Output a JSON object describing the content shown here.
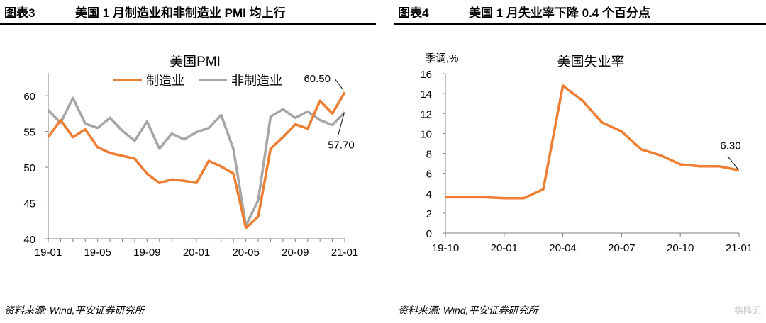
{
  "left_panel": {
    "fig_label": "图表3",
    "heading": "美国 1 月制造业和非制造业 PMI 均上行",
    "source": "资料来源: Wind,平安证券研究所"
  },
  "right_panel": {
    "fig_label": "图表4",
    "heading": "美国 1 月失业率下降 0.4 个百分点",
    "source": "资料来源: Wind,平安证券研究所"
  },
  "watermark": "格隆汇",
  "chart_data": [
    {
      "type": "line",
      "title": "美国PMI",
      "ylim": [
        40,
        62
      ],
      "yticks": [
        40,
        45,
        50,
        55,
        60
      ],
      "xtick_labels": [
        "19-01",
        "19-05",
        "19-09",
        "20-01",
        "20-05",
        "20-09",
        "21-01"
      ],
      "xtick_index": [
        0,
        4,
        8,
        12,
        16,
        20,
        24
      ],
      "legend_position": "top-center",
      "grid": false,
      "x": [
        "19-01",
        "19-02",
        "19-03",
        "19-04",
        "19-05",
        "19-06",
        "19-07",
        "19-08",
        "19-09",
        "19-10",
        "19-11",
        "19-12",
        "20-01",
        "20-02",
        "20-03",
        "20-04",
        "20-05",
        "20-06",
        "20-07",
        "20-08",
        "20-09",
        "20-10",
        "20-11",
        "20-12",
        "21-01"
      ],
      "series": [
        {
          "name": "制造业",
          "color": "#ED7D31",
          "values": [
            54.2,
            56.6,
            54.2,
            55.3,
            52.8,
            52.0,
            51.6,
            51.2,
            49.1,
            47.8,
            48.3,
            48.1,
            47.8,
            50.9,
            50.1,
            49.1,
            41.5,
            43.1,
            52.6,
            54.2,
            56.0,
            55.4,
            59.3,
            57.5,
            60.5
          ]
        },
        {
          "name": "非制造业",
          "color": "#A6A6A6",
          "values": [
            58.0,
            56.2,
            59.7,
            56.1,
            55.5,
            56.9,
            55.1,
            53.7,
            56.4,
            52.6,
            54.7,
            53.9,
            54.9,
            55.5,
            57.3,
            52.5,
            41.8,
            45.4,
            57.1,
            58.1,
            56.9,
            57.8,
            56.6,
            55.9,
            57.7
          ]
        }
      ],
      "annotations": [
        {
          "text": "60.50",
          "series": 0,
          "index": 24
        },
        {
          "text": "57.70",
          "series": 1,
          "index": 24
        }
      ]
    },
    {
      "type": "line",
      "title": "美国失业率",
      "ylabel": "季调,%",
      "ylim": [
        0,
        16
      ],
      "yticks": [
        0,
        2,
        4,
        6,
        8,
        10,
        12,
        14,
        16
      ],
      "xtick_labels": [
        "19-10",
        "20-01",
        "20-04",
        "20-07",
        "20-10",
        "21-01"
      ],
      "xtick_index": [
        0,
        3,
        6,
        9,
        12,
        15
      ],
      "grid": false,
      "x": [
        "19-10",
        "19-11",
        "19-12",
        "20-01",
        "20-02",
        "20-03",
        "20-04",
        "20-05",
        "20-06",
        "20-07",
        "20-08",
        "20-09",
        "20-10",
        "20-11",
        "20-12",
        "21-01"
      ],
      "series": [
        {
          "name": "",
          "color": "#ED7D31",
          "values": [
            3.6,
            3.6,
            3.6,
            3.5,
            3.5,
            4.4,
            14.8,
            13.3,
            11.1,
            10.2,
            8.4,
            7.8,
            6.9,
            6.7,
            6.7,
            6.3
          ]
        }
      ],
      "annotations": [
        {
          "text": "6.30",
          "series": 0,
          "index": 15
        }
      ]
    }
  ]
}
